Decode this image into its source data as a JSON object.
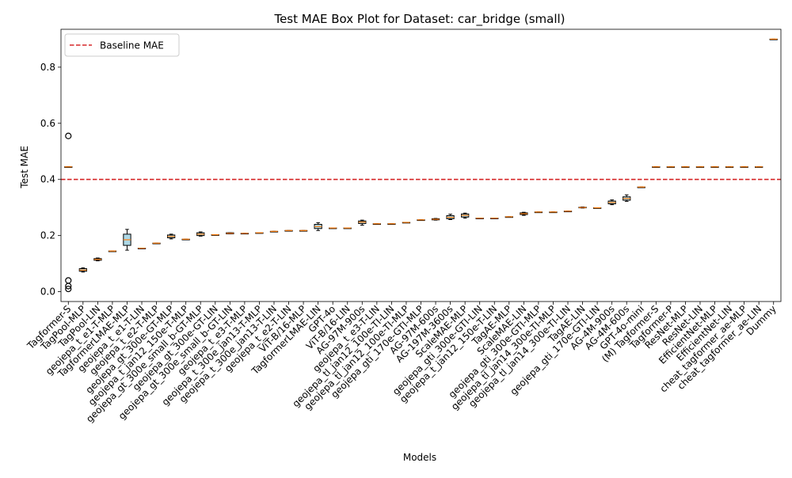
{
  "chart_data": {
    "type": "box",
    "title": "Test MAE Box Plot for Dataset: car_bridge (small)",
    "xlabel": "Models",
    "ylabel": "Test MAE",
    "ylim": [
      -0.035,
      0.935
    ],
    "yticks": [
      0.0,
      0.2,
      0.4,
      0.6,
      0.8
    ],
    "ytick_labels": [
      "0.0",
      "0.2",
      "0.4",
      "0.6",
      "0.8"
    ],
    "grid": false,
    "legend": {
      "position": "top-left",
      "entries": [
        "Baseline MAE"
      ]
    },
    "baseline": {
      "name": "Baseline MAE",
      "value": 0.4,
      "color": "#d62728",
      "style": "dashed"
    },
    "box_color": "#add8e6",
    "median_color": "#ff7f0e",
    "models": [
      {
        "name": "Tagformer-S",
        "min": 0.445,
        "q1": 0.445,
        "median": 0.445,
        "q3": 0.445,
        "max": 0.445,
        "outliers": [
          0.555,
          0.04,
          0.02,
          0.01
        ]
      },
      {
        "name": "TagPool-MLP",
        "min": 0.07,
        "q1": 0.073,
        "median": 0.077,
        "q3": 0.082,
        "max": 0.085,
        "outliers": []
      },
      {
        "name": "TagPool-LIN",
        "min": 0.11,
        "q1": 0.112,
        "median": 0.115,
        "q3": 0.118,
        "max": 0.12,
        "outliers": []
      },
      {
        "name": "geojepa_t_e1-T-MLP",
        "min": 0.145,
        "q1": 0.145,
        "median": 0.145,
        "q3": 0.145,
        "max": 0.145,
        "outliers": []
      },
      {
        "name": "TagformerLMAE-MLP",
        "min": 0.148,
        "q1": 0.165,
        "median": 0.185,
        "q3": 0.205,
        "max": 0.222,
        "outliers": []
      },
      {
        "name": "geojepa_t_e1-T-LIN",
        "min": 0.155,
        "q1": 0.155,
        "median": 0.155,
        "q3": 0.155,
        "max": 0.155,
        "outliers": []
      },
      {
        "name": "geojepa_t_e2-T-MLP",
        "min": 0.173,
        "q1": 0.173,
        "median": 0.173,
        "q3": 0.173,
        "max": 0.173,
        "outliers": []
      },
      {
        "name": "geojepa_gt_300e-GT-MLP",
        "min": 0.188,
        "q1": 0.192,
        "median": 0.197,
        "q3": 0.202,
        "max": 0.205,
        "outliers": []
      },
      {
        "name": "geojepa_t_jan12_150e-T-MLP",
        "min": 0.187,
        "q1": 0.187,
        "median": 0.187,
        "q3": 0.187,
        "max": 0.187,
        "outliers": []
      },
      {
        "name": "geojepa_gt_300e_small_b-GT-MLP",
        "min": 0.198,
        "q1": 0.2,
        "median": 0.205,
        "q3": 0.21,
        "max": 0.213,
        "outliers": []
      },
      {
        "name": "geojepa_gt_300e-GT-LIN",
        "min": 0.203,
        "q1": 0.203,
        "median": 0.203,
        "q3": 0.203,
        "max": 0.203,
        "outliers": []
      },
      {
        "name": "geojepa_gt_300e_small_b-GT-LIN",
        "min": 0.206,
        "q1": 0.206,
        "median": 0.208,
        "q3": 0.21,
        "max": 0.21,
        "outliers": []
      },
      {
        "name": "geojepa_t_e3-T-MLP",
        "min": 0.208,
        "q1": 0.208,
        "median": 0.208,
        "q3": 0.208,
        "max": 0.208,
        "outliers": []
      },
      {
        "name": "geojepa_t_300e_jan13-T-MLP",
        "min": 0.21,
        "q1": 0.21,
        "median": 0.21,
        "q3": 0.21,
        "max": 0.21,
        "outliers": []
      },
      {
        "name": "geojepa_t_300e_jan13-T-LIN",
        "min": 0.215,
        "q1": 0.215,
        "median": 0.215,
        "q3": 0.215,
        "max": 0.215,
        "outliers": []
      },
      {
        "name": "geojepa_t_e2-T-LIN",
        "min": 0.218,
        "q1": 0.218,
        "median": 0.218,
        "q3": 0.218,
        "max": 0.218,
        "outliers": []
      },
      {
        "name": "ViT-B/16-MLP",
        "min": 0.218,
        "q1": 0.218,
        "median": 0.218,
        "q3": 0.218,
        "max": 0.218,
        "outliers": []
      },
      {
        "name": "TagformerLMAE-LIN",
        "min": 0.218,
        "q1": 0.225,
        "median": 0.232,
        "q3": 0.24,
        "max": 0.246,
        "outliers": []
      },
      {
        "name": "GPT-4o",
        "min": 0.227,
        "q1": 0.227,
        "median": 0.227,
        "q3": 0.227,
        "max": 0.227,
        "outliers": []
      },
      {
        "name": "ViT-B/16-LIN",
        "min": 0.227,
        "q1": 0.227,
        "median": 0.227,
        "q3": 0.227,
        "max": 0.227,
        "outliers": []
      },
      {
        "name": "AG-97M-900s",
        "min": 0.237,
        "q1": 0.243,
        "median": 0.248,
        "q3": 0.252,
        "max": 0.255,
        "outliers": []
      },
      {
        "name": "geojepa_t_e3-T-LIN",
        "min": 0.242,
        "q1": 0.242,
        "median": 0.242,
        "q3": 0.242,
        "max": 0.242,
        "outliers": []
      },
      {
        "name": "geojepa_tl_jan12_100e-TI-LIN",
        "min": 0.242,
        "q1": 0.242,
        "median": 0.242,
        "q3": 0.242,
        "max": 0.242,
        "outliers": []
      },
      {
        "name": "geojepa_tl_jan12_100e-TI-MLP",
        "min": 0.247,
        "q1": 0.247,
        "median": 0.247,
        "q3": 0.247,
        "max": 0.247,
        "outliers": []
      },
      {
        "name": "geojepa_gti_170e-GTI-MLP",
        "min": 0.256,
        "q1": 0.256,
        "median": 0.256,
        "q3": 0.256,
        "max": 0.256,
        "outliers": []
      },
      {
        "name": "AG-97M-600s",
        "min": 0.255,
        "q1": 0.256,
        "median": 0.258,
        "q3": 0.26,
        "max": 0.261,
        "outliers": []
      },
      {
        "name": "AG-197M-3600s",
        "min": 0.257,
        "q1": 0.26,
        "median": 0.265,
        "q3": 0.271,
        "max": 0.276,
        "outliers": []
      },
      {
        "name": "ScaleMAE-MLP",
        "min": 0.262,
        "q1": 0.266,
        "median": 0.272,
        "q3": 0.277,
        "max": 0.28,
        "outliers": []
      },
      {
        "name": "geojepa_gti_300e-GTI-LIN",
        "min": 0.262,
        "q1": 0.262,
        "median": 0.262,
        "q3": 0.262,
        "max": 0.262,
        "outliers": []
      },
      {
        "name": "geojepa_t_jan12_150e-T-LIN",
        "min": 0.262,
        "q1": 0.262,
        "median": 0.262,
        "q3": 0.262,
        "max": 0.262,
        "outliers": []
      },
      {
        "name": "TagAE-MLP",
        "min": 0.267,
        "q1": 0.267,
        "median": 0.267,
        "q3": 0.267,
        "max": 0.267,
        "outliers": []
      },
      {
        "name": "ScaleMAE-LIN",
        "min": 0.272,
        "q1": 0.275,
        "median": 0.278,
        "q3": 0.281,
        "max": 0.283,
        "outliers": []
      },
      {
        "name": "geojepa_gti_300e-GTI-MLP",
        "min": 0.284,
        "q1": 0.284,
        "median": 0.284,
        "q3": 0.284,
        "max": 0.284,
        "outliers": []
      },
      {
        "name": "geojepa_tl_jan14_300e-TI-MLP",
        "min": 0.284,
        "q1": 0.284,
        "median": 0.284,
        "q3": 0.284,
        "max": 0.284,
        "outliers": []
      },
      {
        "name": "geojepa_tl_jan14_300e-TI-LIN",
        "min": 0.287,
        "q1": 0.287,
        "median": 0.287,
        "q3": 0.287,
        "max": 0.287,
        "outliers": []
      },
      {
        "name": "TagAE-LIN",
        "min": 0.298,
        "q1": 0.299,
        "median": 0.3,
        "q3": 0.301,
        "max": 0.302,
        "outliers": []
      },
      {
        "name": "geojepa_gti_170e-GTI-LIN",
        "min": 0.299,
        "q1": 0.299,
        "median": 0.299,
        "q3": 0.299,
        "max": 0.299,
        "outliers": []
      },
      {
        "name": "AG-4M-900s",
        "min": 0.31,
        "q1": 0.313,
        "median": 0.318,
        "q3": 0.323,
        "max": 0.327,
        "outliers": []
      },
      {
        "name": "AG-4M-600s",
        "min": 0.322,
        "q1": 0.326,
        "median": 0.332,
        "q3": 0.338,
        "max": 0.345,
        "outliers": []
      },
      {
        "name": "GPT-4o-mini",
        "min": 0.373,
        "q1": 0.373,
        "median": 0.373,
        "q3": 0.373,
        "max": 0.373,
        "outliers": []
      },
      {
        "name": "(M) Tagformer-S",
        "min": 0.445,
        "q1": 0.445,
        "median": 0.445,
        "q3": 0.445,
        "max": 0.445,
        "outliers": []
      },
      {
        "name": "Tagformer-P",
        "min": 0.445,
        "q1": 0.445,
        "median": 0.445,
        "q3": 0.445,
        "max": 0.445,
        "outliers": []
      },
      {
        "name": "ResNet-MLP",
        "min": 0.445,
        "q1": 0.445,
        "median": 0.445,
        "q3": 0.445,
        "max": 0.445,
        "outliers": []
      },
      {
        "name": "ResNet-LIN",
        "min": 0.445,
        "q1": 0.445,
        "median": 0.445,
        "q3": 0.445,
        "max": 0.445,
        "outliers": []
      },
      {
        "name": "EfficientNet-MLP",
        "min": 0.445,
        "q1": 0.445,
        "median": 0.445,
        "q3": 0.445,
        "max": 0.445,
        "outliers": []
      },
      {
        "name": "EfficientNet-LIN",
        "min": 0.445,
        "q1": 0.445,
        "median": 0.445,
        "q3": 0.445,
        "max": 0.445,
        "outliers": []
      },
      {
        "name": "cheat_tagformer_ae-MLP",
        "min": 0.445,
        "q1": 0.445,
        "median": 0.445,
        "q3": 0.445,
        "max": 0.445,
        "outliers": []
      },
      {
        "name": "cheat_tagformer_ae-LIN",
        "min": 0.445,
        "q1": 0.445,
        "median": 0.445,
        "q3": 0.445,
        "max": 0.445,
        "outliers": []
      },
      {
        "name": "Dummy",
        "min": 0.9,
        "q1": 0.9,
        "median": 0.9,
        "q3": 0.9,
        "max": 0.9,
        "outliers": []
      }
    ]
  }
}
